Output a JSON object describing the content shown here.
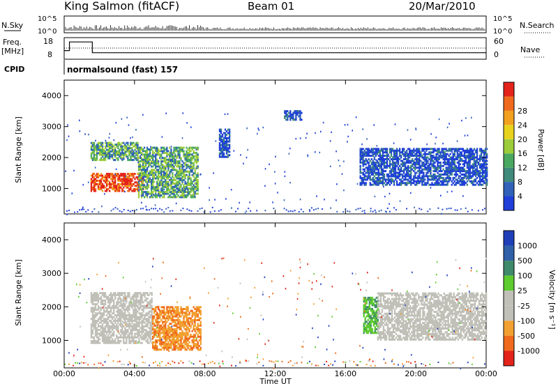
{
  "header": {
    "station": "King Salmon (fitACF)",
    "beam": "Beam 01",
    "date": "20/Mar/2010"
  },
  "top_panels": {
    "nsky_label": "N.Sky",
    "nsearch_label": "N.Search",
    "noise_ticks": [
      "10^5",
      "10^0"
    ],
    "freq_label_1": "Freq.",
    "freq_label_2": "[MHz]",
    "freq_ticks": [
      "18",
      "8"
    ],
    "nave_label": "Nave",
    "nave_ticks": [
      "60",
      "0"
    ],
    "cpid_label": "CPID",
    "cpid_value": "normalsound (fast) 157"
  },
  "axes": {
    "xlabel": "Time UT",
    "ylabel": "Slant Range [km]",
    "x_ticks": [
      "00:00",
      "04:00",
      "08:00",
      "12:00",
      "16:00",
      "20:00",
      "00:00"
    ],
    "y_ticks": [
      "1000",
      "2000",
      "3000",
      "4000"
    ]
  },
  "power_bar": {
    "label": "Power [dB]",
    "ticks": [
      "4",
      "8",
      "12",
      "16",
      "20",
      "24",
      "28"
    ],
    "colors": [
      "#1f3fd8",
      "#2f62b8",
      "#3f8a7a",
      "#49a860",
      "#9ccc3a",
      "#e8d21c",
      "#f2a020",
      "#ef6a1c",
      "#e4231a"
    ]
  },
  "velocity_bar": {
    "label": "Velocity [m s⁻¹]",
    "ticks": [
      "1000",
      "500",
      "100",
      "25",
      "-25",
      "-100",
      "-500",
      "-1000"
    ],
    "colors": [
      "#1f3fb8",
      "#2f60a8",
      "#3f8a6a",
      "#5ecb2e",
      "#c0c0b8",
      "#c0c0b8",
      "#f2a030",
      "#ef6a1c",
      "#e4231a"
    ]
  },
  "chart_data": [
    {
      "type": "line",
      "name": "noise",
      "ylim_text": [
        "10^0",
        "10^5"
      ]
    },
    {
      "type": "line",
      "name": "frequency",
      "x": [
        0,
        0.3,
        1.5,
        1.6,
        24
      ],
      "series": [
        {
          "values": [
            12,
            16,
            16,
            11,
            11
          ]
        }
      ],
      "ylim": [
        8,
        18
      ]
    },
    {
      "type": "heatmap",
      "name": "power",
      "xlim": [
        0,
        24
      ],
      "ylim": [
        180,
        4500
      ],
      "regions": [
        {
          "t": [
            1.5,
            4.5
          ],
          "r": [
            900,
            1500
          ],
          "level": "high"
        },
        {
          "t": [
            1.5,
            4.2
          ],
          "r": [
            1900,
            2500
          ],
          "level": "mid"
        },
        {
          "t": [
            4.2,
            7.6
          ],
          "r": [
            700,
            2300
          ],
          "level": "mid"
        },
        {
          "t": [
            8.8,
            9.4
          ],
          "r": [
            2000,
            2900
          ],
          "level": "low"
        },
        {
          "t": [
            12.5,
            13.5
          ],
          "r": [
            3200,
            3500
          ],
          "level": "low"
        },
        {
          "t": [
            16.8,
            24
          ],
          "r": [
            1100,
            2300
          ],
          "level": "low"
        }
      ]
    },
    {
      "type": "heatmap",
      "name": "velocity",
      "xlim": [
        0,
        24
      ],
      "ylim": [
        180,
        4500
      ],
      "regions": [
        {
          "t": [
            1.5,
            5.0
          ],
          "r": [
            900,
            2400
          ],
          "level": "ground"
        },
        {
          "t": [
            5.0,
            7.8
          ],
          "r": [
            700,
            2000
          ],
          "level": "negative"
        },
        {
          "t": [
            17.0,
            17.8
          ],
          "r": [
            1200,
            2300
          ],
          "level": "positive"
        },
        {
          "t": [
            17.8,
            24
          ],
          "r": [
            1000,
            2400
          ],
          "level": "ground"
        }
      ]
    }
  ]
}
